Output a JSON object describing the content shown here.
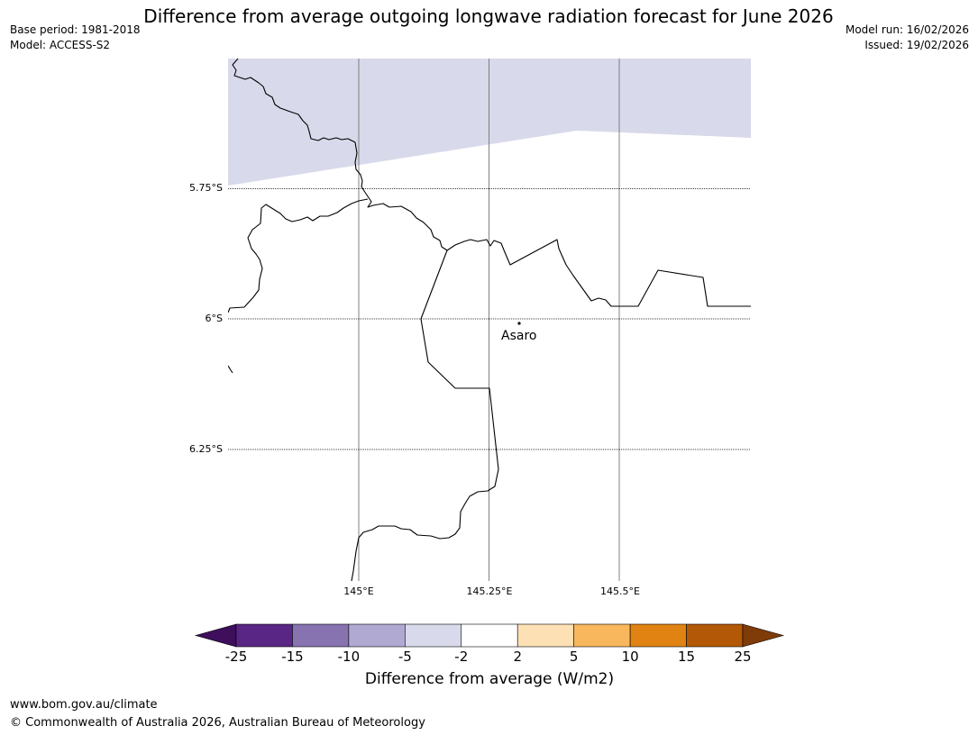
{
  "header": {
    "title": "Difference from average outgoing longwave radiation forecast for June 2026",
    "base_period": "Base period: 1981-2018",
    "model": "Model: ACCESS-S2",
    "model_run": "Model run: 16/02/2026",
    "issued": "Issued: 19/02/2026"
  },
  "map": {
    "latitude_labels": [
      "5.75°S",
      "6°S",
      "6.25°S"
    ],
    "longitude_labels": [
      "145°E",
      "145.25°E",
      "145.5°E"
    ],
    "place_label": "Asaro",
    "anomaly_fill_color": "#d8d9ea",
    "anomaly_region_category": "-5 to -2"
  },
  "colorbar": {
    "label": "Difference from average (W/m2)",
    "ticks": [
      "-25",
      "-15",
      "-10",
      "-5",
      "-2",
      "2",
      "5",
      "10",
      "15",
      "25"
    ],
    "colors": [
      "#3f0e5c",
      "#5a2685",
      "#8673b0",
      "#b0a9d2",
      "#d8d9ea",
      "#ffffff",
      "#fde0b4",
      "#f9b75d",
      "#e08313",
      "#b35806",
      "#7f3b08"
    ]
  },
  "footer": {
    "website": "www.bom.gov.au/climate",
    "copyright": "© Commonwealth of Australia 2026, Australian Bureau of Meteorology"
  }
}
